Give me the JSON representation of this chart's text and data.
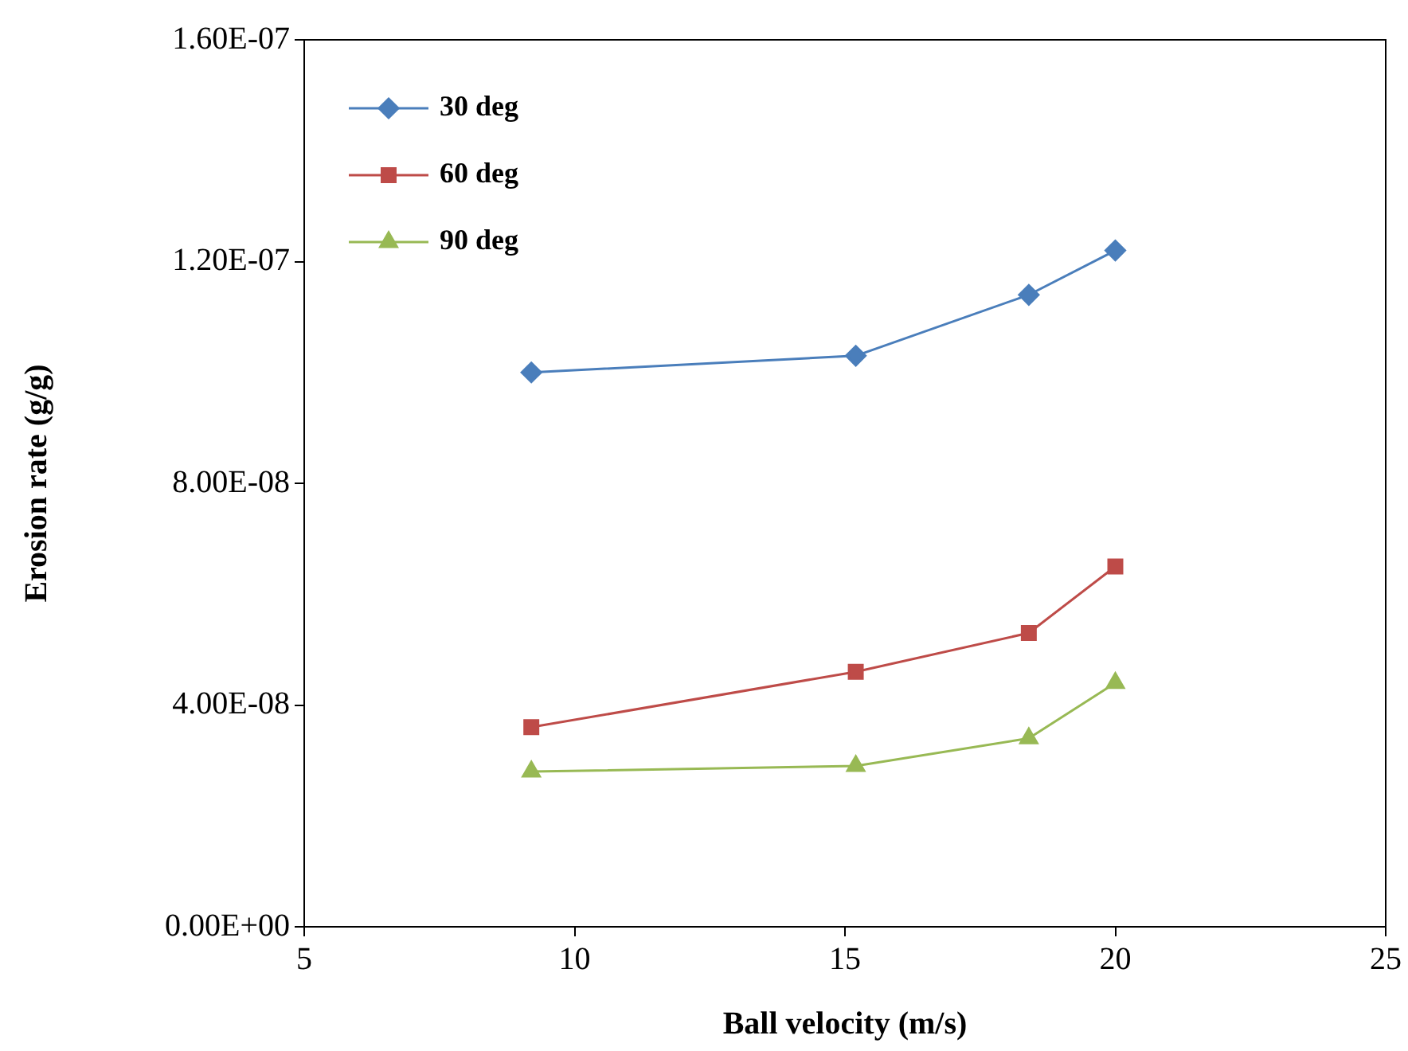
{
  "chart_data": {
    "type": "line",
    "xlabel": "Ball velocity (m/s)",
    "ylabel": "Erosion rate (g/g)",
    "x": [
      9.2,
      15.2,
      18.4,
      20
    ],
    "xlim": [
      5,
      25
    ],
    "xticks": [
      5,
      10,
      15,
      20,
      25
    ],
    "ylim": [
      0,
      1.6e-07
    ],
    "yticks": [
      {
        "value": 0,
        "label": "0.00E+00"
      },
      {
        "value": 4e-08,
        "label": "4.00E-08"
      },
      {
        "value": 8e-08,
        "label": "8.00E-08"
      },
      {
        "value": 1.2e-07,
        "label": "1.20E-07"
      },
      {
        "value": 1.6e-07,
        "label": "1.60E-07"
      }
    ],
    "grid": false,
    "legend": "top left",
    "line_style": "solid",
    "series": [
      {
        "name": "30 deg",
        "color": "#4a7ebb",
        "marker": "diamond",
        "values": [
          1e-07,
          1.03e-07,
          1.14e-07,
          1.22e-07
        ]
      },
      {
        "name": "60 deg",
        "color": "#be4b48",
        "marker": "square",
        "values": [
          3.6e-08,
          4.6e-08,
          5.3e-08,
          6.5e-08
        ]
      },
      {
        "name": "90 deg",
        "color": "#98b954",
        "marker": "triangle",
        "values": [
          2.8e-08,
          2.9e-08,
          3.4e-08,
          4.4e-08
        ]
      }
    ]
  }
}
